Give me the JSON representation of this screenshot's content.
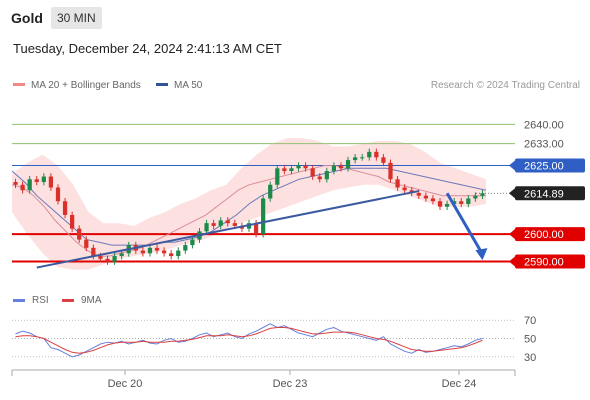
{
  "header": {
    "symbol": "Gold",
    "timeframe": "30 MIN"
  },
  "timestamp": "Tuesday, December 24, 2024 2:41:13 AM CET",
  "legend": [
    {
      "label": "MA 20 + Bollinger Bands",
      "color": "#f08a8a"
    },
    {
      "label": "MA 50",
      "color": "#2f5597"
    }
  ],
  "copyright": "Research © 2024 Trading Central",
  "colors": {
    "up": "#1e8a4a",
    "down": "#d9302a",
    "ma50": "#6a78b8",
    "ma20": "#d98c9a",
    "band": "#fddcdc",
    "support": "#e00000",
    "resistance_green": "#8fc070",
    "resistance_blue": "#2f5ec4",
    "trend": "#3b5aa0",
    "rsi": "#6680dd",
    "rsi_ma": "#d94040"
  },
  "chart_data": [
    {
      "type": "candlestick",
      "title": "",
      "yrange": [
        2584,
        2650
      ],
      "x_ticks": [
        "Dec 20",
        "Dec 23",
        "Dec 24"
      ],
      "levels": [
        {
          "value": 2640.0,
          "label": "2640.00",
          "kind": "resistance"
        },
        {
          "value": 2633.0,
          "label": "2633.00",
          "kind": "resistance"
        },
        {
          "value": 2625.0,
          "label": "2625.00",
          "kind": "pivot"
        },
        {
          "value": 2614.89,
          "label": "2614.89",
          "kind": "last"
        },
        {
          "value": 2600.0,
          "label": "2600.00",
          "kind": "support"
        },
        {
          "value": 2590.0,
          "label": "2590.00",
          "kind": "support"
        }
      ],
      "last_price": 2614.89,
      "trendline": [
        [
          3,
          2587.8
        ],
        [
          57,
          2615.7
        ]
      ],
      "forecast_arrow": [
        [
          61,
          2614.9
        ],
        [
          66,
          2590.5
        ]
      ],
      "ohlc_close": [
        2618,
        2616,
        2620,
        2619,
        2621,
        2617,
        2612,
        2607,
        2602,
        2598,
        2595,
        2592,
        2591,
        2590,
        2592,
        2593,
        2596,
        2594,
        2593,
        2595,
        2594,
        2593,
        2592,
        2594,
        2596,
        2598,
        2601,
        2604,
        2603,
        2605,
        2604,
        2603,
        2602,
        2604,
        2600,
        2613,
        2618,
        2624,
        2623,
        2624,
        2625,
        2624,
        2621,
        2620,
        2623,
        2625,
        2624,
        2627,
        2628,
        2628,
        2630,
        2628,
        2626,
        2620,
        2617,
        2616,
        2615,
        2614,
        2613,
        2612,
        2610,
        2611,
        2612,
        2611,
        2613,
        2614,
        2614.89
      ],
      "ma20": [
        2618,
        2617,
        2614,
        2610,
        2605,
        2601,
        2597,
        2594,
        2592,
        2592,
        2593,
        2594,
        2595,
        2597,
        2599,
        2601,
        2603,
        2605,
        2607,
        2610,
        2613,
        2616,
        2618,
        2619,
        2620,
        2621,
        2622,
        2623,
        2624,
        2625,
        2625,
        2624,
        2623,
        2622,
        2621,
        2619,
        2618,
        2617,
        2616,
        2615,
        2614,
        2614,
        2614,
        2614,
        2614
      ],
      "ma50": [
        2623,
        2619,
        2614,
        2610,
        2606,
        2602,
        2598,
        2597,
        2596,
        2596,
        2596,
        2596,
        2597,
        2597,
        2598,
        2599,
        2601,
        2604,
        2607,
        2611,
        2614,
        2616,
        2618,
        2620,
        2621,
        2622,
        2623,
        2624,
        2624,
        2624,
        2624,
        2623,
        2622,
        2621,
        2620,
        2619,
        2618,
        2617,
        2616
      ],
      "band_upper": [
        2622,
        2626,
        2629,
        2625,
        2618,
        2608,
        2604,
        2604,
        2603,
        2606,
        2608,
        2611,
        2613,
        2616,
        2618,
        2624,
        2629,
        2633,
        2635,
        2635,
        2634,
        2632,
        2632,
        2633,
        2634,
        2634,
        2633,
        2630,
        2626,
        2624,
        2622,
        2620
      ],
      "band_lower": [
        2608,
        2600,
        2593,
        2588,
        2587,
        2587,
        2589,
        2591,
        2592,
        2593,
        2594,
        2596,
        2597,
        2599,
        2602,
        2604,
        2606,
        2608,
        2610,
        2612,
        2614,
        2616,
        2617,
        2618,
        2618,
        2616,
        2614,
        2612,
        2610,
        2610,
        2610,
        2611
      ]
    },
    {
      "type": "line",
      "title": "",
      "legend": [
        {
          "label": "RSI",
          "color": "#6680dd"
        },
        {
          "label": "9MA",
          "color": "#d94040"
        }
      ],
      "ylevels": [
        70,
        50,
        30
      ],
      "rsi": [
        55,
        58,
        56,
        52,
        50,
        40,
        38,
        34,
        30,
        32,
        36,
        40,
        44,
        46,
        45,
        47,
        44,
        46,
        48,
        45,
        44,
        48,
        50,
        46,
        47,
        50,
        54,
        56,
        52,
        54,
        56,
        52,
        50,
        55,
        58,
        62,
        66,
        62,
        64,
        60,
        56,
        54,
        52,
        56,
        60,
        62,
        58,
        56,
        54,
        52,
        50,
        48,
        52,
        44,
        40,
        36,
        34,
        38,
        35,
        36,
        38,
        40,
        42,
        41,
        44,
        48,
        50
      ],
      "rsi_ma": [
        52,
        53,
        53,
        52,
        50,
        46,
        42,
        38,
        35,
        34,
        35,
        37,
        40,
        43,
        45,
        46,
        46,
        46,
        47,
        46,
        46,
        46,
        47,
        47,
        48,
        49,
        51,
        53,
        53,
        53,
        54,
        53,
        52,
        53,
        55,
        58,
        61,
        62,
        62,
        61,
        59,
        57,
        55,
        55,
        56,
        57,
        57,
        57,
        56,
        54,
        52,
        50,
        49,
        47,
        44,
        41,
        38,
        37,
        36,
        36,
        37,
        38,
        39,
        40,
        42,
        45,
        48
      ]
    }
  ]
}
